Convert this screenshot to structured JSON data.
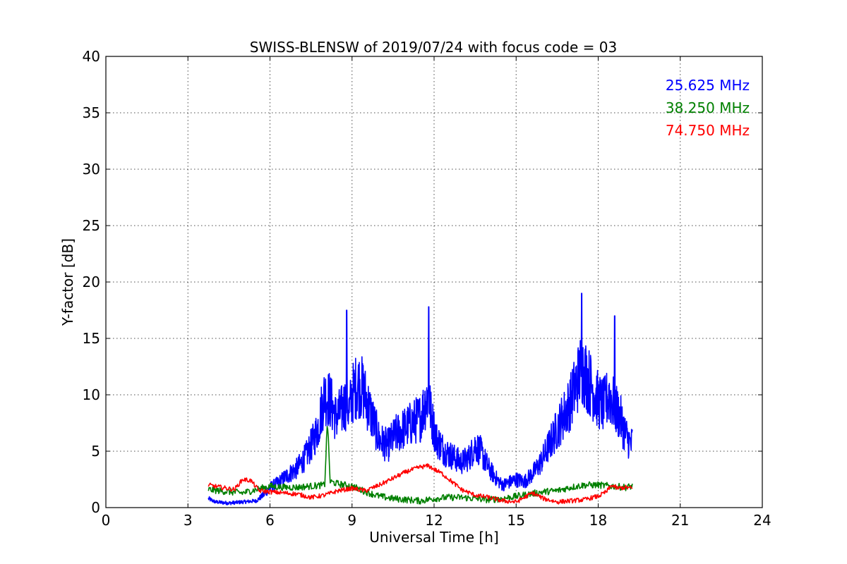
{
  "chart_data": {
    "type": "line",
    "title": "SWISS-BLENSW of 2019/07/24 with focus code = 03",
    "xlabel": "Universal Time [h]",
    "ylabel": "Y-factor [dB]",
    "xlim": [
      0,
      24
    ],
    "ylim": [
      0,
      40
    ],
    "xticks": [
      0,
      3,
      6,
      9,
      12,
      15,
      18,
      21,
      24
    ],
    "xtick_labels": [
      "0",
      "3",
      "6",
      "9",
      "12",
      "15",
      "18",
      "21",
      "24"
    ],
    "yticks": [
      0,
      5,
      10,
      15,
      20,
      25,
      30,
      35,
      40
    ],
    "ytick_labels": [
      "0",
      "5",
      "10",
      "15",
      "20",
      "25",
      "30",
      "35",
      "40"
    ],
    "grid": true,
    "legend_placement": "top-right",
    "series": [
      {
        "name": "25.625 MHz",
        "color": "#0000ff",
        "x": [
          3.75,
          4.0,
          4.5,
          5.0,
          5.5,
          5.8,
          6.0,
          6.3,
          6.6,
          7.0,
          7.3,
          7.6,
          7.8,
          7.9,
          8.0,
          8.2,
          8.4,
          8.6,
          8.8,
          8.9,
          9.0,
          9.2,
          9.4,
          9.6,
          9.8,
          10.0,
          10.3,
          10.6,
          10.9,
          11.2,
          11.5,
          11.7,
          11.8,
          11.9,
          12.1,
          12.4,
          12.7,
          13.0,
          13.3,
          13.5,
          13.7,
          14.0,
          14.3,
          14.5,
          14.7,
          15.0,
          15.3,
          15.6,
          15.9,
          16.2,
          16.5,
          16.8,
          17.0,
          17.2,
          17.4,
          17.6,
          17.8,
          18.0,
          18.2,
          18.4,
          18.6,
          18.8,
          19.0,
          19.2,
          19.25
        ],
        "values": [
          0.8,
          0.5,
          0.4,
          0.5,
          0.6,
          1.2,
          1.8,
          2.2,
          2.8,
          3.5,
          4.5,
          6.0,
          7.5,
          9.0,
          10.0,
          9.5,
          8.0,
          8.5,
          9.5,
          8.5,
          10.0,
          11.0,
          10.5,
          9.0,
          7.5,
          6.0,
          5.5,
          6.5,
          7.0,
          7.5,
          8.0,
          9.5,
          10.0,
          8.0,
          6.0,
          5.0,
          4.5,
          4.0,
          4.5,
          5.5,
          5.0,
          3.5,
          2.5,
          2.0,
          2.2,
          2.5,
          2.3,
          3.0,
          4.0,
          5.5,
          7.0,
          8.5,
          9.5,
          11.0,
          12.5,
          11.5,
          10.5,
          9.5,
          9.0,
          10.0,
          9.0,
          8.0,
          6.5,
          5.5,
          6.0
        ],
        "peaks": [
          [
            8.8,
            17.5
          ],
          [
            11.8,
            17.8
          ],
          [
            17.4,
            19.0
          ],
          [
            18.6,
            17.0
          ]
        ]
      },
      {
        "name": "38.250 MHz",
        "color": "#008000",
        "x": [
          3.75,
          4.5,
          5.0,
          5.5,
          6.0,
          6.5,
          7.0,
          7.5,
          8.0,
          8.1,
          8.2,
          8.5,
          9.0,
          9.5,
          10.0,
          10.5,
          11.0,
          11.5,
          12.0,
          12.5,
          13.0,
          13.5,
          14.0,
          14.5,
          15.0,
          15.5,
          16.0,
          16.5,
          17.0,
          17.5,
          18.0,
          18.5,
          19.0,
          19.25
        ],
        "values": [
          1.6,
          1.4,
          1.3,
          1.6,
          1.9,
          1.8,
          1.8,
          1.9,
          2.0,
          7.8,
          2.3,
          2.1,
          1.9,
          1.4,
          1.0,
          0.8,
          0.7,
          0.6,
          0.8,
          0.9,
          0.9,
          0.8,
          0.7,
          0.8,
          1.0,
          1.2,
          1.4,
          1.5,
          1.8,
          2.0,
          2.0,
          1.9,
          1.8,
          1.9
        ]
      },
      {
        "name": "74.750 MHz",
        "color": "#ff0000",
        "x": [
          3.75,
          4.2,
          4.7,
          5.0,
          5.3,
          5.6,
          6.0,
          6.5,
          7.0,
          7.5,
          8.0,
          8.5,
          9.0,
          9.5,
          10.0,
          10.5,
          11.0,
          11.5,
          11.8,
          12.0,
          12.3,
          12.6,
          13.0,
          13.5,
          14.0,
          14.5,
          15.0,
          15.3,
          15.6,
          16.0,
          16.5,
          17.0,
          17.5,
          17.8,
          18.0,
          18.3,
          18.5,
          18.7,
          19.0,
          19.25
        ],
        "values": [
          2.0,
          1.8,
          1.6,
          2.5,
          2.4,
          1.5,
          1.4,
          1.3,
          1.2,
          0.9,
          1.1,
          1.5,
          1.7,
          1.5,
          2.0,
          2.6,
          3.2,
          3.6,
          3.7,
          3.4,
          3.0,
          2.4,
          1.6,
          1.1,
          0.9,
          0.6,
          0.5,
          0.9,
          1.3,
          0.8,
          0.5,
          0.6,
          0.7,
          0.9,
          1.0,
          1.4,
          2.0,
          1.7,
          1.8,
          1.7
        ]
      }
    ]
  }
}
